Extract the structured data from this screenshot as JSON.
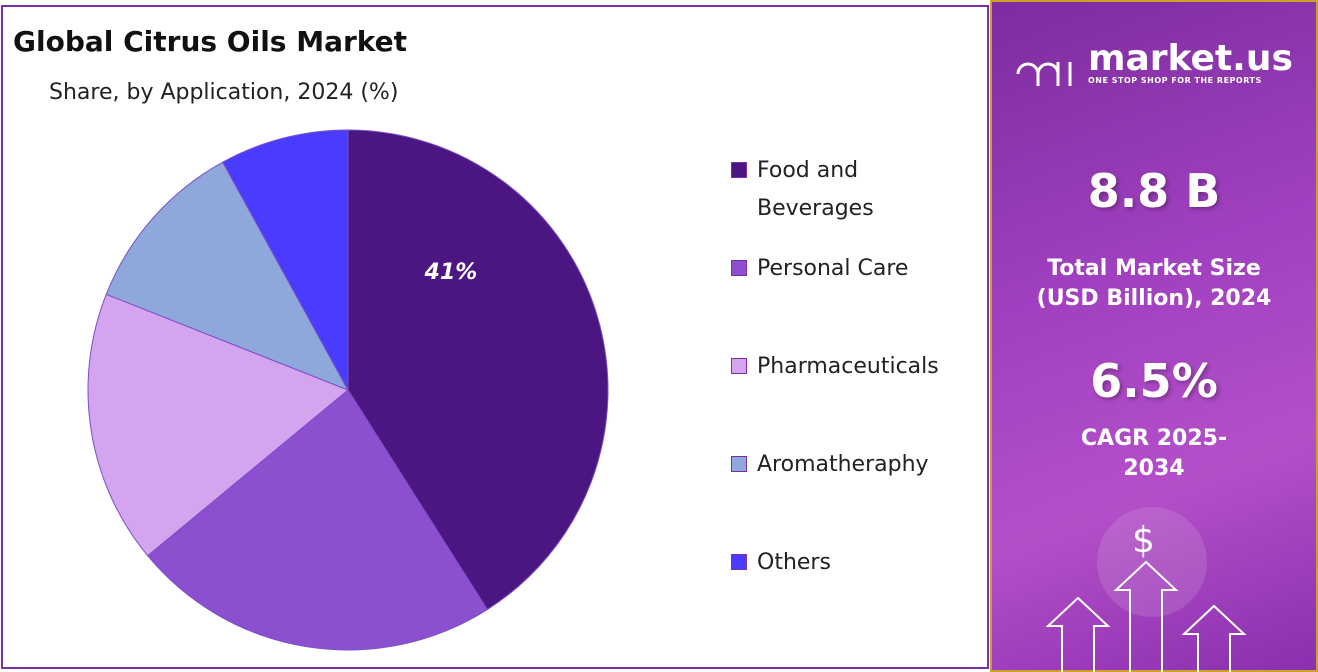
{
  "chart_data": {
    "type": "pie",
    "title": "Global Citrus Oils Market",
    "subtitle": "Share, by Application, 2024 (%)",
    "categories": [
      "Food and Beverages",
      "Personal Care",
      "Pharmaceuticals",
      "Aromatheraphy",
      "Others"
    ],
    "values": [
      41,
      23,
      17,
      11,
      8
    ],
    "value_labels": [
      "41%",
      null,
      null,
      null,
      null
    ],
    "colors": [
      "#4b1681",
      "#8b4fd0",
      "#d4a5ee",
      "#8fa8dc",
      "#4a3cff"
    ]
  },
  "sidebar": {
    "logo": "market.us",
    "tagline": "ONE STOP SHOP FOR THE REPORTS",
    "market_size": "8.8 B",
    "market_size_label": "Total Market Size (USD Billion), 2024",
    "cagr": "6.5%",
    "cagr_label": "CAGR 2025-2034",
    "currency_icon": "$"
  }
}
